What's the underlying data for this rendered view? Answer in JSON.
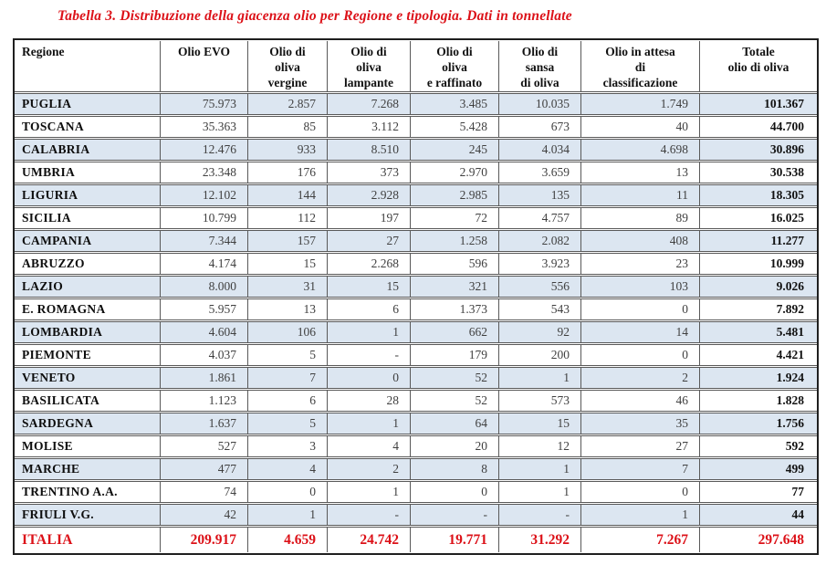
{
  "title": "Tabella 3. Distribuzione della giacenza olio per Regione e tipologia. Dati in tonnellate",
  "colors": {
    "accent_red": "#dc1118",
    "row_shade": "#dce6f1",
    "border_inner": "#595959",
    "border_outer": "#1f1f1f"
  },
  "table": {
    "columns": [
      {
        "key": "regione",
        "lines": [
          "Regione"
        ]
      },
      {
        "key": "olio-evo",
        "lines": [
          "Olio EVO"
        ]
      },
      {
        "key": "oliva-vergine",
        "lines": [
          "Olio di",
          "oliva",
          "vergine"
        ]
      },
      {
        "key": "oliva-lampante",
        "lines": [
          "Olio di",
          "oliva",
          "lampante"
        ]
      },
      {
        "key": "oliva-raffinato",
        "lines": [
          "Olio di",
          "oliva",
          "e raffinato"
        ]
      },
      {
        "key": "sansa-di-oliva",
        "lines": [
          "Olio di",
          "sansa",
          "di oliva"
        ]
      },
      {
        "key": "attesa-classificazione",
        "lines": [
          "Olio in attesa",
          "di",
          "classificazione"
        ]
      },
      {
        "key": "totale",
        "lines": [
          "Totale",
          "olio di oliva"
        ]
      }
    ],
    "rows": [
      {
        "region": "PUGLIA",
        "values": [
          "75.973",
          "2.857",
          "7.268",
          "3.485",
          "10.035",
          "1.749",
          "101.367"
        ],
        "shaded": true
      },
      {
        "region": "TOSCANA",
        "values": [
          "35.363",
          "85",
          "3.112",
          "5.428",
          "673",
          "40",
          "44.700"
        ],
        "shaded": false
      },
      {
        "region": "CALABRIA",
        "values": [
          "12.476",
          "933",
          "8.510",
          "245",
          "4.034",
          "4.698",
          "30.896"
        ],
        "shaded": true
      },
      {
        "region": "UMBRIA",
        "values": [
          "23.348",
          "176",
          "373",
          "2.970",
          "3.659",
          "13",
          "30.538"
        ],
        "shaded": false
      },
      {
        "region": "LIGURIA",
        "values": [
          "12.102",
          "144",
          "2.928",
          "2.985",
          "135",
          "11",
          "18.305"
        ],
        "shaded": true
      },
      {
        "region": "SICILIA",
        "values": [
          "10.799",
          "112",
          "197",
          "72",
          "4.757",
          "89",
          "16.025"
        ],
        "shaded": false
      },
      {
        "region": "CAMPANIA",
        "values": [
          "7.344",
          "157",
          "27",
          "1.258",
          "2.082",
          "408",
          "11.277"
        ],
        "shaded": true
      },
      {
        "region": "ABRUZZO",
        "values": [
          "4.174",
          "15",
          "2.268",
          "596",
          "3.923",
          "23",
          "10.999"
        ],
        "shaded": false
      },
      {
        "region": "LAZIO",
        "values": [
          "8.000",
          "31",
          "15",
          "321",
          "556",
          "103",
          "9.026"
        ],
        "shaded": true
      },
      {
        "region": "E. ROMAGNA",
        "values": [
          "5.957",
          "13",
          "6",
          "1.373",
          "543",
          "0",
          "7.892"
        ],
        "shaded": false
      },
      {
        "region": "LOMBARDIA",
        "values": [
          "4.604",
          "106",
          "1",
          "662",
          "92",
          "14",
          "5.481"
        ],
        "shaded": true
      },
      {
        "region": "PIEMONTE",
        "values": [
          "4.037",
          "5",
          "-",
          "179",
          "200",
          "0",
          "4.421"
        ],
        "shaded": false
      },
      {
        "region": "VENETO",
        "values": [
          "1.861",
          "7",
          "0",
          "52",
          "1",
          "2",
          "1.924"
        ],
        "shaded": true
      },
      {
        "region": "BASILICATA",
        "values": [
          "1.123",
          "6",
          "28",
          "52",
          "573",
          "46",
          "1.828"
        ],
        "shaded": false
      },
      {
        "region": "SARDEGNA",
        "values": [
          "1.637",
          "5",
          "1",
          "64",
          "15",
          "35",
          "1.756"
        ],
        "shaded": true
      },
      {
        "region": "MOLISE",
        "values": [
          "527",
          "3",
          "4",
          "20",
          "12",
          "27",
          "592"
        ],
        "shaded": false
      },
      {
        "region": "MARCHE",
        "values": [
          "477",
          "4",
          "2",
          "8",
          "1",
          "7",
          "499"
        ],
        "shaded": true
      },
      {
        "region": "TRENTINO A.A.",
        "values": [
          "74",
          "0",
          "1",
          "0",
          "1",
          "0",
          "77"
        ],
        "shaded": false
      },
      {
        "region": "FRIULI V.G.",
        "values": [
          "42",
          "1",
          "-",
          "-",
          "-",
          "1",
          "44"
        ],
        "shaded": true
      },
      {
        "region": "ITALIA",
        "values": [
          "209.917",
          "4.659",
          "24.742",
          "19.771",
          "31.292",
          "7.267",
          "297.648"
        ],
        "shaded": false,
        "total": true
      }
    ]
  }
}
